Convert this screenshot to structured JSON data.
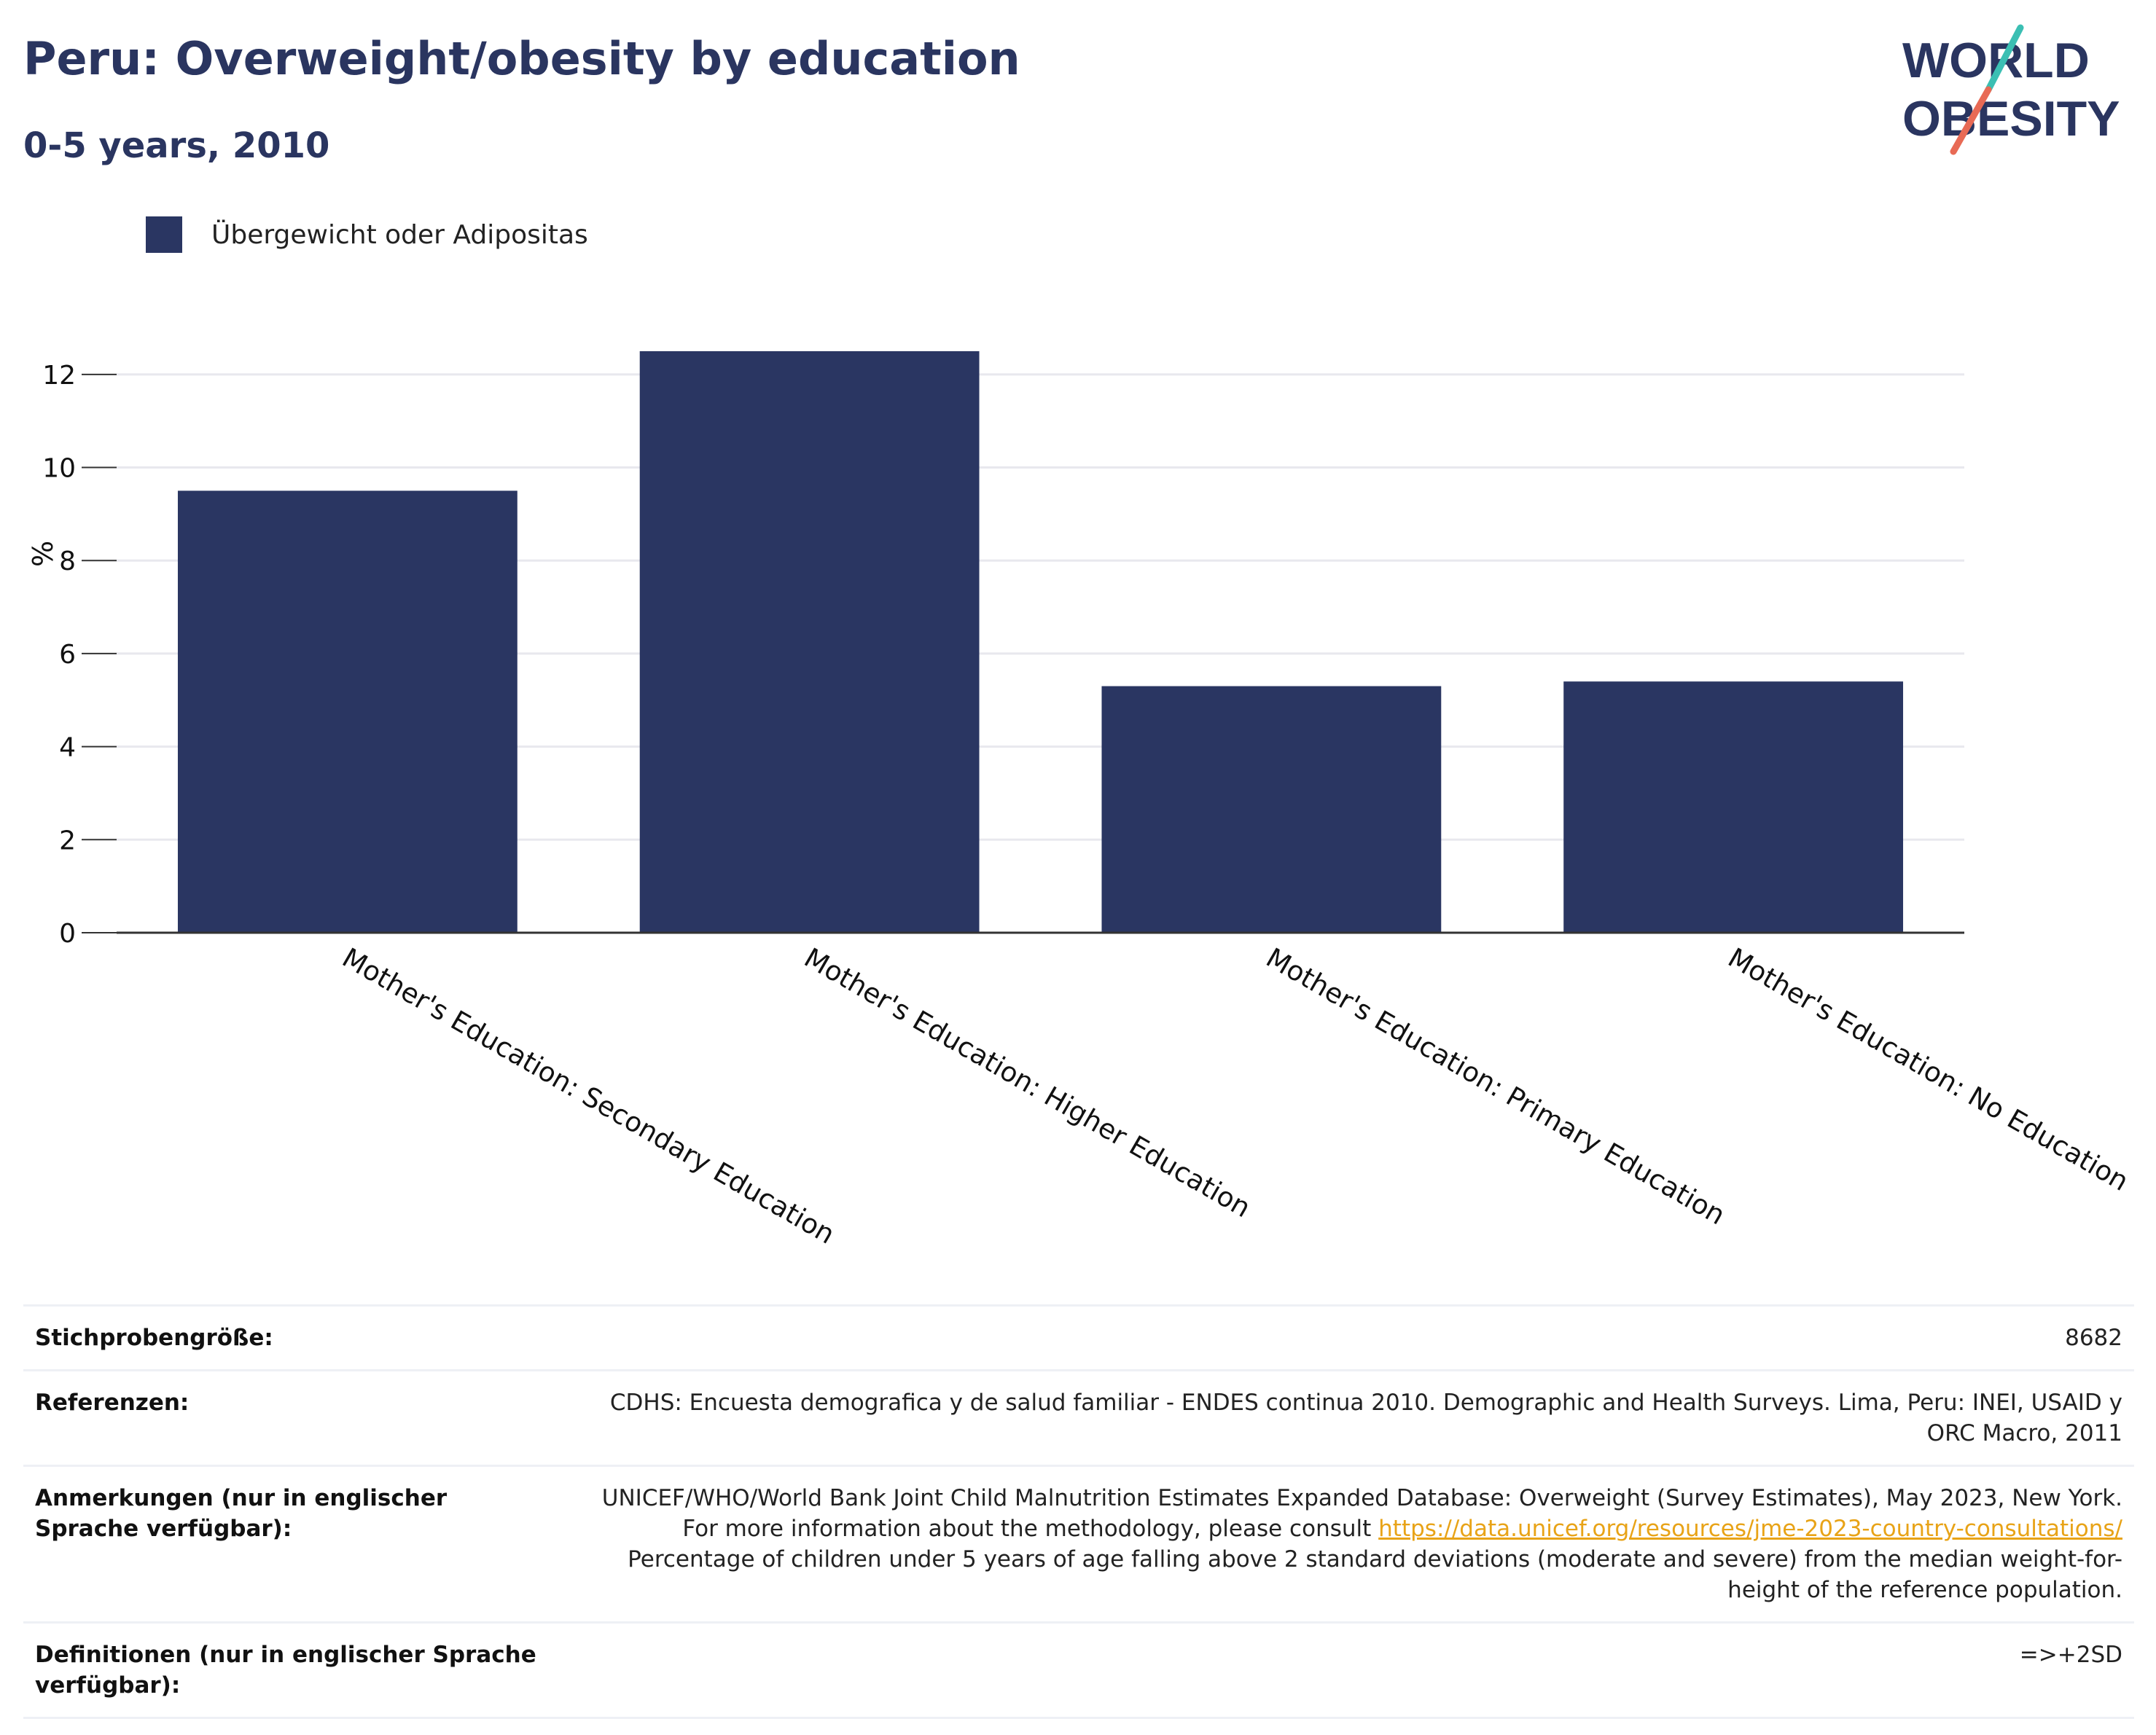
{
  "header": {
    "title": "Peru: Overweight/obesity by education",
    "subtitle": "0-5 years, 2010"
  },
  "logo": {
    "line1": "WORLD",
    "line2": "OBESITY",
    "colors": {
      "text": "#2a3560",
      "stripe_top": "#3bbfb3",
      "stripe_bottom": "#e86a55"
    }
  },
  "colors": {
    "bar": "#2a3662",
    "grid": "#e8e8ee",
    "axis": "#333333",
    "link": "#e8a317"
  },
  "chart_data": {
    "type": "bar",
    "categories": [
      "Mother's Education: Secondary Education",
      "Mother's Education: Higher Education",
      "Mother's Education: Primary Education",
      "Mother's Education: No Education"
    ],
    "series": [
      {
        "name": "Übergewicht oder Adipositas",
        "values": [
          9.5,
          12.5,
          5.3,
          5.4
        ]
      }
    ],
    "ylabel": "%",
    "xlabel": "",
    "ylim": [
      0,
      13
    ],
    "yticks": [
      0,
      2,
      4,
      6,
      8,
      10,
      12
    ],
    "grid": true,
    "legend": "top-left"
  },
  "meta": {
    "sample_size_label": "Stichprobengröße:",
    "sample_size_value": "8682",
    "references_label": "Referenzen:",
    "references_value": "CDHS: Encuesta demografica y de salud familiar - ENDES continua 2010. Demographic and Health Surveys. Lima, Peru: INEI, USAID y ORC Macro, 2011",
    "notes_label": "Anmerkungen (nur in englischer Sprache verfügbar):",
    "notes_text_1": "UNICEF/WHO/World Bank Joint Child Malnutrition Estimates Expanded Database: Overweight (Survey Estimates), May 2023, New York. For more information about the methodology, please consult",
    "notes_link": "https://data.unicef.org/resources/jme-2023-country-consultations/",
    "notes_text_2": "Percentage of children under 5 years of age falling above 2 standard deviations (moderate and severe) from the median weight-for-height of the reference population.",
    "definitions_label": "Definitionen (nur in englischer Sprache verfügbar):",
    "definitions_value": "=>+2SD"
  }
}
